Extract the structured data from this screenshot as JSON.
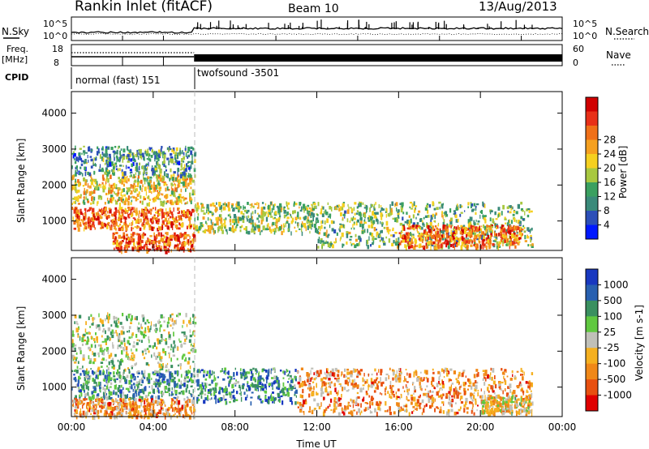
{
  "header": {
    "station": "Rankin Inlet (fitACF)",
    "beam": "Beam 10",
    "date": "13/Aug/2013"
  },
  "status_panel": {
    "nsky_label": "N.Sky",
    "nsearch_label": "N.Search",
    "left_ticks": [
      "10^5",
      "10^0"
    ],
    "right_ticks": [
      "10^5",
      "10^0"
    ],
    "freq_label_line1": "Freq.",
    "freq_label_line2": "[MHz]",
    "freq_ticks": [
      "18",
      "8"
    ],
    "nave_label": "Nave",
    "nave_ticks": [
      "60",
      "0"
    ],
    "cpid_label": "CPID",
    "cpid_segments": [
      {
        "start_hour": 0,
        "end_hour": 6,
        "text": "normal (fast) 151"
      },
      {
        "start_hour": 6,
        "end_hour": 24,
        "text": "twofsound -3501"
      }
    ]
  },
  "chart_data": [
    {
      "type": "heatmap",
      "title": "",
      "quantity": "Power",
      "xlabel": "",
      "ylabel": "Slant Range [km]",
      "xlim": [
        0,
        24
      ],
      "ylim": [
        180,
        4600
      ],
      "y_ticks": [
        "1000",
        "2000",
        "3000",
        "4000"
      ],
      "colorbar_label": "Power [dB]",
      "colorbar_ticks": [
        "4",
        "8",
        "12",
        "16",
        "20",
        "24",
        "28"
      ],
      "colorbar_colors": [
        "#0018ff",
        "#2c4fb8",
        "#3a8a7a",
        "#3aa060",
        "#a8c840",
        "#f5d020",
        "#f5a020",
        "#f07018",
        "#e83018",
        "#d00000"
      ],
      "echo_regions": [
        {
          "t0": 0.0,
          "t1": 6.0,
          "r0": 1500,
          "r1": 2300,
          "level": 0.55
        },
        {
          "t0": 0.0,
          "t1": 6.0,
          "r0": 2300,
          "r1": 3100,
          "level": 0.3
        },
        {
          "t0": 0.0,
          "t1": 6.0,
          "r0": 800,
          "r1": 1400,
          "level": 0.75
        },
        {
          "t0": 2.0,
          "t1": 6.0,
          "r0": 200,
          "r1": 700,
          "level": 0.8
        },
        {
          "t0": 6.0,
          "t1": 12.0,
          "r0": 700,
          "r1": 1550,
          "level": 0.45
        },
        {
          "t0": 12.0,
          "t1": 22.5,
          "r0": 300,
          "r1": 1550,
          "level": 0.4
        },
        {
          "t0": 16.0,
          "t1": 22.0,
          "r0": 300,
          "r1": 900,
          "level": 0.75
        }
      ]
    },
    {
      "type": "heatmap",
      "title": "",
      "quantity": "Velocity",
      "xlabel": "Time UT",
      "ylabel": "Slant Range [km]",
      "xlim": [
        0,
        24
      ],
      "ylim": [
        180,
        4600
      ],
      "x_ticks": [
        "00:00",
        "04:00",
        "08:00",
        "12:00",
        "16:00",
        "20:00",
        "00:00"
      ],
      "y_ticks": [
        "1000",
        "2000",
        "3000",
        "4000"
      ],
      "colorbar_label": "Velocity [m s-1]",
      "colorbar_ticks": [
        "1000",
        "500",
        "100",
        "25",
        "-25",
        "-100",
        "-500",
        "-1000"
      ],
      "colorbar_colors": [
        "#1838c0",
        "#2860b0",
        "#3a9060",
        "#60c840",
        "#c0c0b8",
        "#f5b020",
        "#f08818",
        "#e85010",
        "#e00000"
      ],
      "echo_regions": [
        {
          "t0": 0.0,
          "t1": 6.0,
          "r0": 1500,
          "r1": 3100,
          "level": 0.45
        },
        {
          "t0": 0.0,
          "t1": 6.0,
          "r0": 700,
          "r1": 1500,
          "level": 0.3
        },
        {
          "t0": 0.0,
          "t1": 6.0,
          "r0": 200,
          "r1": 700,
          "level": 0.7
        },
        {
          "t0": 6.0,
          "t1": 11.0,
          "r0": 600,
          "r1": 1550,
          "level": 0.25
        },
        {
          "t0": 11.0,
          "t1": 22.5,
          "r0": 300,
          "r1": 1550,
          "level": 0.7
        },
        {
          "t0": 20.0,
          "t1": 22.5,
          "r0": 300,
          "r1": 800,
          "level": 0.55
        }
      ]
    }
  ]
}
